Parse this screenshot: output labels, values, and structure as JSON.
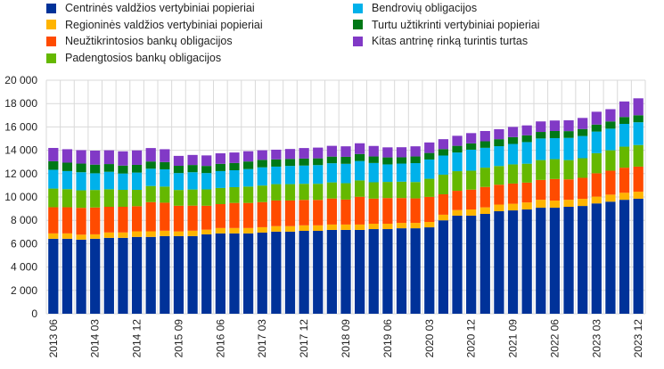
{
  "chart_data": {
    "type": "bar",
    "stacked": true,
    "title": "",
    "xlabel": "",
    "ylabel": "",
    "ylim": [
      0,
      20000
    ],
    "yticks": [
      0,
      2000,
      4000,
      6000,
      8000,
      10000,
      12000,
      14000,
      16000,
      18000,
      20000
    ],
    "ytick_labels": [
      "0",
      "2 000",
      "4 000",
      "6 000",
      "8 000",
      "10 000",
      "12 000",
      "14 000",
      "16 000",
      "18 000",
      "20 000"
    ],
    "grid": true,
    "legend_position": "top",
    "categories": [
      "2013 06",
      "2013 09",
      "2013 12",
      "2014 03",
      "2014 06",
      "2014 09",
      "2014 12",
      "2015 03",
      "2015 06",
      "2015 09",
      "2015 12",
      "2016 03",
      "2016 06",
      "2016 09",
      "2016 12",
      "2017 03",
      "2017 06",
      "2017 09",
      "2017 12",
      "2018 03",
      "2018 06",
      "2018 09",
      "2018 12",
      "2019 03",
      "2019 06",
      "2019 09",
      "2019 12",
      "2020 03",
      "2020 06",
      "2020 09",
      "2020 12",
      "2021 03",
      "2021 06",
      "2021 09",
      "2021 12",
      "2022 03",
      "2022 06",
      "2022 09",
      "2022 12",
      "2023 03",
      "2023 06",
      "2023 09",
      "2023 12"
    ],
    "xtick_labels": [
      "2013 06",
      "2014 03",
      "2014 12",
      "2015 09",
      "2016 06",
      "2017 03",
      "2017 12",
      "2018 09",
      "2019 06",
      "2020 03",
      "2020 12",
      "2021 09",
      "2022 06",
      "2023 03",
      "2023 12"
    ],
    "series": [
      {
        "name": "Centrinės valdžios vertybiniai popieriai",
        "color": "#003299",
        "values": [
          6420,
          6420,
          6350,
          6420,
          6500,
          6500,
          6580,
          6580,
          6650,
          6650,
          6650,
          6800,
          6880,
          6880,
          6880,
          6950,
          7030,
          7030,
          7100,
          7100,
          7180,
          7180,
          7180,
          7250,
          7250,
          7320,
          7320,
          7400,
          8000,
          8400,
          8400,
          8550,
          8780,
          8850,
          8930,
          9080,
          9080,
          9160,
          9230,
          9450,
          9600,
          9760,
          9850
        ]
      },
      {
        "name": "Regioninės valdžios vertybiniai popieriai",
        "color": "#FFB400",
        "values": [
          460,
          460,
          420,
          380,
          460,
          460,
          480,
          480,
          460,
          400,
          460,
          400,
          460,
          460,
          460,
          460,
          470,
          470,
          470,
          470,
          460,
          460,
          460,
          460,
          460,
          460,
          460,
          460,
          480,
          480,
          530,
          560,
          570,
          570,
          600,
          680,
          610,
          600,
          610,
          580,
          600,
          600,
          600
        ]
      },
      {
        "name": "Neužtikrintosios bankų obligacijos",
        "color": "#FF4B00",
        "values": [
          2240,
          2240,
          2300,
          2300,
          2200,
          2200,
          2150,
          2500,
          2400,
          2200,
          2150,
          2050,
          2050,
          2150,
          2150,
          2150,
          2200,
          2200,
          2180,
          2180,
          2230,
          2140,
          2380,
          2150,
          2200,
          2130,
          2100,
          2150,
          1750,
          1650,
          1700,
          1750,
          1700,
          1730,
          1700,
          1700,
          1850,
          1750,
          1800,
          2000,
          2050,
          2150,
          2150
        ]
      },
      {
        "name": "Padengtosios bankų obligacijos",
        "color": "#65B800",
        "values": [
          1600,
          1550,
          1500,
          1500,
          1500,
          1450,
          1400,
          1380,
          1380,
          1350,
          1380,
          1400,
          1380,
          1350,
          1400,
          1420,
          1400,
          1400,
          1380,
          1380,
          1380,
          1400,
          1400,
          1400,
          1380,
          1400,
          1400,
          1550,
          1680,
          1680,
          1620,
          1650,
          1600,
          1640,
          1620,
          1700,
          1700,
          1650,
          1680,
          1720,
          1750,
          1800,
          1850
        ]
      },
      {
        "name": "Bendrovių obligacijos",
        "color": "#00B1EA",
        "values": [
          1610,
          1550,
          1550,
          1430,
          1500,
          1400,
          1480,
          1480,
          1480,
          1450,
          1480,
          1400,
          1450,
          1450,
          1500,
          1560,
          1500,
          1560,
          1560,
          1600,
          1640,
          1660,
          1660,
          1650,
          1500,
          1550,
          1620,
          1650,
          1640,
          1600,
          1800,
          1700,
          1700,
          1750,
          1850,
          1850,
          1800,
          1900,
          1900,
          1850,
          1850,
          1950,
          1950
        ]
      },
      {
        "name": "Turtu užtikrinti vertybiniai popieriai",
        "color": "#007816",
        "values": [
          730,
          720,
          740,
          740,
          660,
          680,
          660,
          620,
          620,
          620,
          620,
          610,
          620,
          620,
          650,
          640,
          620,
          600,
          600,
          580,
          570,
          600,
          600,
          560,
          600,
          540,
          570,
          560,
          550,
          570,
          540,
          560,
          600,
          590,
          580,
          560,
          610,
          580,
          600,
          600,
          620,
          590,
          600
        ]
      },
      {
        "name": "Kitas antrinę rinką turintis turtas",
        "color": "#8139C6",
        "values": [
          1140,
          1150,
          1150,
          1200,
          1180,
          1220,
          1240,
          1150,
          1100,
          850,
          860,
          900,
          900,
          900,
          880,
          820,
          830,
          850,
          900,
          920,
          920,
          900,
          920,
          900,
          860,
          860,
          870,
          900,
          850,
          860,
          880,
          880,
          850,
          870,
          850,
          900,
          900,
          930,
          950,
          1100,
          1050,
          1330,
          1450
        ]
      }
    ]
  }
}
